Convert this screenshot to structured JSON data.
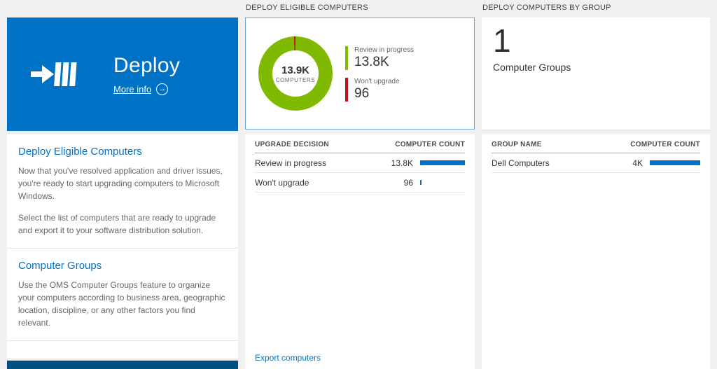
{
  "colors": {
    "accent_blue": "#0072c6",
    "tile_blue": "#0072c6",
    "bottom_strip_blue": "#004f83",
    "green": "#7fba00",
    "red": "#ba141a",
    "bar_blue": "#0072c6",
    "selected_tile_border": "#6fa8d2"
  },
  "left": {
    "tile": {
      "title": "Deploy",
      "more_info_label": "More info"
    },
    "sections": [
      {
        "heading": "Deploy Eligible Computers",
        "p1": "Now that you've resolved application and driver issues, you're ready to start upgrading computers to Microsoft Windows.",
        "p2": "Select the list of computers that are ready to upgrade and export it to your software distribution solution."
      },
      {
        "heading": "Computer Groups",
        "p1": "Use the OMS Computer Groups feature to organize your computers according to business area, geographic location, discipline, or any other factors you find relevant."
      }
    ]
  },
  "middle": {
    "header": "DEPLOY ELIGIBLE COMPUTERS",
    "donut_center": {
      "value": "13.9K",
      "label": "COMPUTERS"
    },
    "legend": [
      {
        "label": "Review in progress",
        "value": "13.8K"
      },
      {
        "label": "Won't upgrade",
        "value": "96"
      }
    ],
    "table": {
      "col1": "UPGRADE DECISION",
      "col2": "COMPUTER COUNT",
      "rows": [
        {
          "label": "Review in progress",
          "value": "13.8K",
          "bar_pct": 100
        },
        {
          "label": "Won't upgrade",
          "value": "96",
          "bar_pct": 3
        }
      ]
    },
    "export_link": "Export computers"
  },
  "right": {
    "header": "DEPLOY COMPUTERS BY GROUP",
    "tile": {
      "count": "1",
      "label": "Computer Groups"
    },
    "table": {
      "col1": "GROUP NAME",
      "col2": "COMPUTER COUNT",
      "rows": [
        {
          "label": "Dell Computers",
          "value": "4K",
          "bar_pct": 100
        }
      ]
    }
  },
  "chart_data": {
    "type": "pie",
    "title": "Deploy Eligible Computers",
    "center_value": "13.9K",
    "center_label": "COMPUTERS",
    "segments": [
      {
        "label": "Review in progress",
        "value": 13800,
        "color": "#7fba00"
      },
      {
        "label": "Won't upgrade",
        "value": 96,
        "color": "#ba141a"
      }
    ],
    "legend_position": "right"
  }
}
